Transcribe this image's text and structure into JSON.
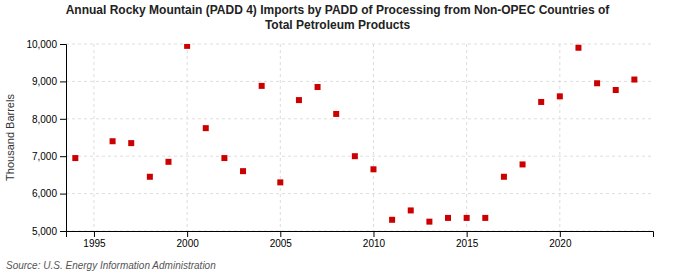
{
  "chart_data": {
    "type": "scatter",
    "title": "Annual Rocky Mountain (PADD 4) Imports by PADD of Processing from Non-OPEC Countries of\nTotal Petroleum Products",
    "ylabel": "Thousand Barrels",
    "annotations": [
      "Source: U.S. Energy Information Administration"
    ],
    "x": [
      1994,
      1996,
      1997,
      1998,
      1999,
      2000,
      2001,
      2002,
      2003,
      2004,
      2005,
      2006,
      2007,
      2008,
      2009,
      2010,
      2011,
      2012,
      2013,
      2014,
      2015,
      2016,
      2017,
      2018,
      2019,
      2020,
      2021,
      2022,
      2023,
      2024
    ],
    "values": [
      6950,
      7400,
      7350,
      6450,
      6850,
      9950,
      7750,
      6950,
      6600,
      8880,
      6300,
      8500,
      8850,
      8130,
      7000,
      6650,
      5300,
      5550,
      5250,
      5350,
      5350,
      5350,
      6450,
      6780,
      8450,
      8600,
      9900,
      8950,
      8770,
      9050
    ],
    "color": "#cc0000",
    "marker": "square",
    "xlim": [
      1993.5,
      2025
    ],
    "xticks": [
      1995,
      2000,
      2005,
      2010,
      2015,
      2020
    ],
    "ylim": [
      5000,
      10000
    ],
    "yticks": [
      {
        "value": 5000,
        "label": "5,000"
      },
      {
        "value": 6000,
        "label": "6,000"
      },
      {
        "value": 7000,
        "label": "7,000"
      },
      {
        "value": 8000,
        "label": "8,000"
      },
      {
        "value": 9000,
        "label": "9,000"
      },
      {
        "value": 10000,
        "label": "10,000"
      }
    ],
    "grid": true
  }
}
